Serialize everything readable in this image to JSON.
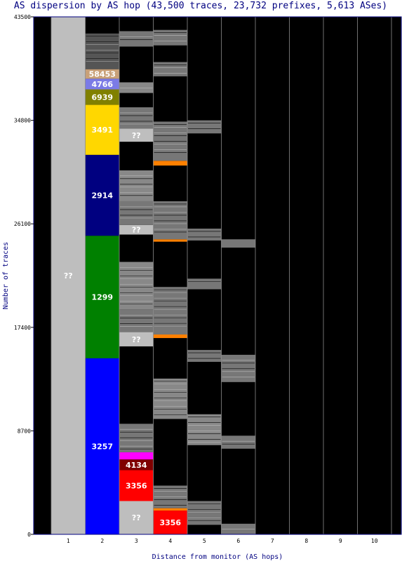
{
  "chart_data": {
    "type": "bar",
    "title": "AS dispersion by AS hop (43,500 traces, 23,732 prefixes, 5,613 ASes)",
    "xlabel": "Distance from monitor (AS hops)",
    "ylabel": "Number of traces",
    "ylim": [
      0,
      43500
    ],
    "yticks": [
      "0",
      "8700",
      "17400",
      "26100",
      "34800",
      "43500"
    ],
    "categories": [
      "1",
      "2",
      "3",
      "4",
      "5",
      "6",
      "7",
      "8",
      "9",
      "10"
    ],
    "background_color": "#000000",
    "gridlines": "vertical",
    "stacks": [
      {
        "hop": "1",
        "segments": [
          {
            "label": "??",
            "value": 43500,
            "color": "#bebebe"
          }
        ]
      },
      {
        "hop": "2",
        "segments": [
          {
            "label": "3257",
            "value": 14800,
            "color": "#0000ff"
          },
          {
            "label": "1299",
            "value": 10300,
            "color": "#008000"
          },
          {
            "label": "2914",
            "value": 6800,
            "color": "#000080"
          },
          {
            "label": "3491",
            "value": 4200,
            "color": "#ffd700"
          },
          {
            "label": "6939",
            "value": 1300,
            "color": "#808000"
          },
          {
            "label": "4766",
            "value": 900,
            "color": "#7b7be6"
          },
          {
            "label": "58453",
            "value": 800,
            "color": "#c8a078"
          },
          {
            "label": "",
            "value": 3000,
            "color": "#555555"
          }
        ]
      },
      {
        "hop": "3",
        "segments": [
          {
            "label": "??",
            "value": 2800,
            "color": "#bebebe"
          },
          {
            "label": "3356",
            "value": 2600,
            "color": "#ff0000"
          },
          {
            "label": "4134",
            "value": 900,
            "color": "#800000"
          },
          {
            "label": "",
            "value": 600,
            "color": "#ff00ff"
          },
          {
            "label": "",
            "value": 2400,
            "color": "#777777"
          },
          {
            "label": "",
            "value": 6500,
            "color": "#000000"
          },
          {
            "label": "??",
            "value": 1200,
            "color": "#bebebe"
          },
          {
            "label": "",
            "value": 1900,
            "color": "#777777"
          },
          {
            "label": "",
            "value": 4000,
            "color": "#888888"
          },
          {
            "label": "",
            "value": 2300,
            "color": "#000000"
          },
          {
            "label": "??",
            "value": 800,
            "color": "#bebebe"
          },
          {
            "label": "",
            "value": 2000,
            "color": "#777777"
          },
          {
            "label": "",
            "value": 2600,
            "color": "#888888"
          },
          {
            "label": "",
            "value": 2400,
            "color": "#000000"
          },
          {
            "label": "??",
            "value": 1100,
            "color": "#bebebe"
          },
          {
            "label": "",
            "value": 1800,
            "color": "#777777"
          },
          {
            "label": "",
            "value": 1200,
            "color": "#000000"
          },
          {
            "label": "",
            "value": 900,
            "color": "#888888"
          },
          {
            "label": "",
            "value": 3000,
            "color": "#000000"
          },
          {
            "label": "",
            "value": 1300,
            "color": "#777777"
          },
          {
            "label": "",
            "value": 1200,
            "color": "#000000"
          }
        ]
      },
      {
        "hop": "4",
        "segments": [
          {
            "label": "3356",
            "value": 2000,
            "color": "#ff0000"
          },
          {
            "label": "",
            "value": 200,
            "color": "#ff8000"
          },
          {
            "label": "",
            "value": 1900,
            "color": "#777777"
          },
          {
            "label": "",
            "value": 5600,
            "color": "#000000"
          },
          {
            "label": "",
            "value": 3400,
            "color": "#888888"
          },
          {
            "label": "",
            "value": 3400,
            "color": "#000000"
          },
          {
            "label": "",
            "value": 300,
            "color": "#ff8000"
          },
          {
            "label": "",
            "value": 4000,
            "color": "#777777"
          },
          {
            "label": "",
            "value": 3800,
            "color": "#000000"
          },
          {
            "label": "",
            "value": 200,
            "color": "#ff8000"
          },
          {
            "label": "",
            "value": 3200,
            "color": "#777777"
          },
          {
            "label": "",
            "value": 3000,
            "color": "#000000"
          },
          {
            "label": "",
            "value": 400,
            "color": "#ff8000"
          },
          {
            "label": "",
            "value": 3300,
            "color": "#777777"
          },
          {
            "label": "",
            "value": 3800,
            "color": "#000000"
          },
          {
            "label": "",
            "value": 1200,
            "color": "#777777"
          },
          {
            "label": "",
            "value": 1400,
            "color": "#000000"
          },
          {
            "label": "",
            "value": 1300,
            "color": "#777777"
          }
        ]
      },
      {
        "hop": "5",
        "segments": [
          {
            "label": "",
            "value": 800,
            "color": "#000000"
          },
          {
            "label": "",
            "value": 2000,
            "color": "#777777"
          },
          {
            "label": "",
            "value": 4700,
            "color": "#000000"
          },
          {
            "label": "",
            "value": 2600,
            "color": "#888888"
          },
          {
            "label": "",
            "value": 4400,
            "color": "#000000"
          },
          {
            "label": "",
            "value": 1000,
            "color": "#777777"
          },
          {
            "label": "",
            "value": 5100,
            "color": "#000000"
          },
          {
            "label": "",
            "value": 900,
            "color": "#777777"
          },
          {
            "label": "",
            "value": 3200,
            "color": "#000000"
          },
          {
            "label": "",
            "value": 1000,
            "color": "#777777"
          },
          {
            "label": "",
            "value": 8000,
            "color": "#000000"
          },
          {
            "label": "",
            "value": 1100,
            "color": "#777777"
          }
        ]
      },
      {
        "hop": "6",
        "segments": [
          {
            "label": "",
            "value": 900,
            "color": "#777777"
          },
          {
            "label": "",
            "value": 6300,
            "color": "#000000"
          },
          {
            "label": "",
            "value": 1100,
            "color": "#777777"
          },
          {
            "label": "",
            "value": 4500,
            "color": "#000000"
          },
          {
            "label": "",
            "value": 2300,
            "color": "#777777"
          },
          {
            "label": "",
            "value": 9000,
            "color": "#000000"
          },
          {
            "label": "",
            "value": 700,
            "color": "#777777"
          }
        ]
      }
    ]
  }
}
